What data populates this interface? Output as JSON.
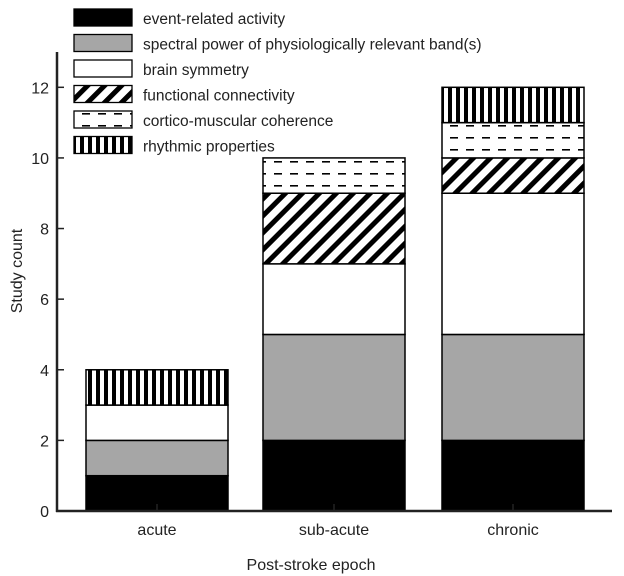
{
  "chart_data": {
    "type": "bar",
    "stacked": true,
    "categories": [
      "acute",
      "sub-acute",
      "chronic"
    ],
    "series": [
      {
        "name": "event-related activity",
        "values": [
          1,
          2,
          2
        ],
        "fill": "solid-black"
      },
      {
        "name": "spectral power of physiologically relevant band(s)",
        "values": [
          1,
          3,
          3
        ],
        "fill": "solid-gray"
      },
      {
        "name": "brain symmetry",
        "values": [
          1,
          2,
          4
        ],
        "fill": "white"
      },
      {
        "name": "functional connectivity",
        "values": [
          0,
          2,
          1
        ],
        "fill": "diagonal-hatch"
      },
      {
        "name": "cortico-muscular coherence",
        "values": [
          0,
          1,
          1
        ],
        "fill": "dashed-horizontal"
      },
      {
        "name": "rhythmic properties",
        "values": [
          1,
          0,
          1
        ],
        "fill": "vertical-hatch"
      }
    ],
    "xlabel": "Post-stroke epoch",
    "ylabel": "Study count",
    "ylim": [
      0,
      13
    ],
    "yticks": [
      0,
      2,
      4,
      6,
      8,
      10,
      12
    ],
    "grid": false,
    "legend": "top-left",
    "colors": {
      "black": "#000000",
      "gray": "#a6a6a6",
      "white": "#ffffff"
    }
  }
}
